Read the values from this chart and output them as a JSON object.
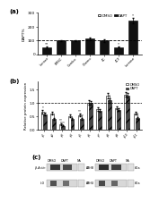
{
  "panel_a": {
    "title_label": "(a)",
    "legend_dmso": "DMSO",
    "legend_dapt": "DAPT",
    "categories": [
      "Lunase",
      "BMSC",
      "Combo",
      "Chemo",
      "4C",
      "4CF",
      "Lurease"
    ],
    "dapt_values": [
      48,
      100,
      100,
      112,
      100,
      52,
      245
    ],
    "errors_a": [
      6,
      4,
      4,
      8,
      10,
      6,
      18
    ],
    "ylabel": "DAPT%",
    "ylim": [
      0,
      300
    ],
    "yticks": [
      0,
      100,
      200,
      300
    ],
    "dashed_line_y": 100,
    "bar_color": "#111111",
    "sig_labels": [
      "**",
      "",
      "",
      "",
      "",
      "*",
      "*"
    ]
  },
  "panel_b": {
    "title_label": "(b)",
    "legend_dmso": "DMSO",
    "legend_dapt": "DAPT",
    "categories": [
      "p1",
      "p2",
      "p3",
      "p4",
      "p5",
      "p6",
      "p7",
      "p8",
      "p9",
      "p10",
      "p11"
    ],
    "dmso_values": [
      0.68,
      0.62,
      0.22,
      0.52,
      0.55,
      1.02,
      0.78,
      1.28,
      0.82,
      1.32,
      0.62
    ],
    "dapt_values": [
      0.58,
      0.4,
      0.15,
      0.4,
      0.4,
      1.0,
      0.72,
      1.1,
      0.75,
      1.28,
      0.45
    ],
    "errors_dmso": [
      0.06,
      0.05,
      0.03,
      0.04,
      0.05,
      0.08,
      0.07,
      0.09,
      0.06,
      0.09,
      0.05
    ],
    "errors_dapt": [
      0.05,
      0.04,
      0.02,
      0.03,
      0.04,
      0.07,
      0.06,
      0.08,
      0.05,
      0.08,
      0.04
    ],
    "ylabel": "Relative protein expression",
    "ylim": [
      0,
      1.8
    ],
    "yticks": [
      0.0,
      0.5,
      1.0,
      1.5
    ],
    "dashed_line_y": 1.0,
    "dmso_color": "#ffffff",
    "dapt_color": "#444444",
    "hatch": "///",
    "sig_labels_dmso": [
      "*",
      "",
      "**",
      "",
      "**",
      "",
      "",
      "",
      "",
      "",
      ""
    ],
    "sig_labels_dapt": [
      "",
      "",
      "***",
      "",
      "***",
      "",
      "",
      "*",
      "",
      "",
      "**"
    ]
  },
  "panel_c": {
    "title_label": "(c)",
    "col_headers_left": [
      "DMSO",
      "DAPT",
      "NA"
    ],
    "col_headers_right": [
      "DMSO",
      "DAPT",
      "NA"
    ],
    "row_labels_left": [
      "β-Actin",
      "lcG"
    ],
    "row_labels_right": [
      "LDHB",
      "LDHG"
    ],
    "kda_left": [
      "42",
      "42"
    ],
    "kda_right": [
      "kDa",
      "kDa"
    ]
  },
  "bg_color": "#ffffff",
  "text_color": "#000000"
}
